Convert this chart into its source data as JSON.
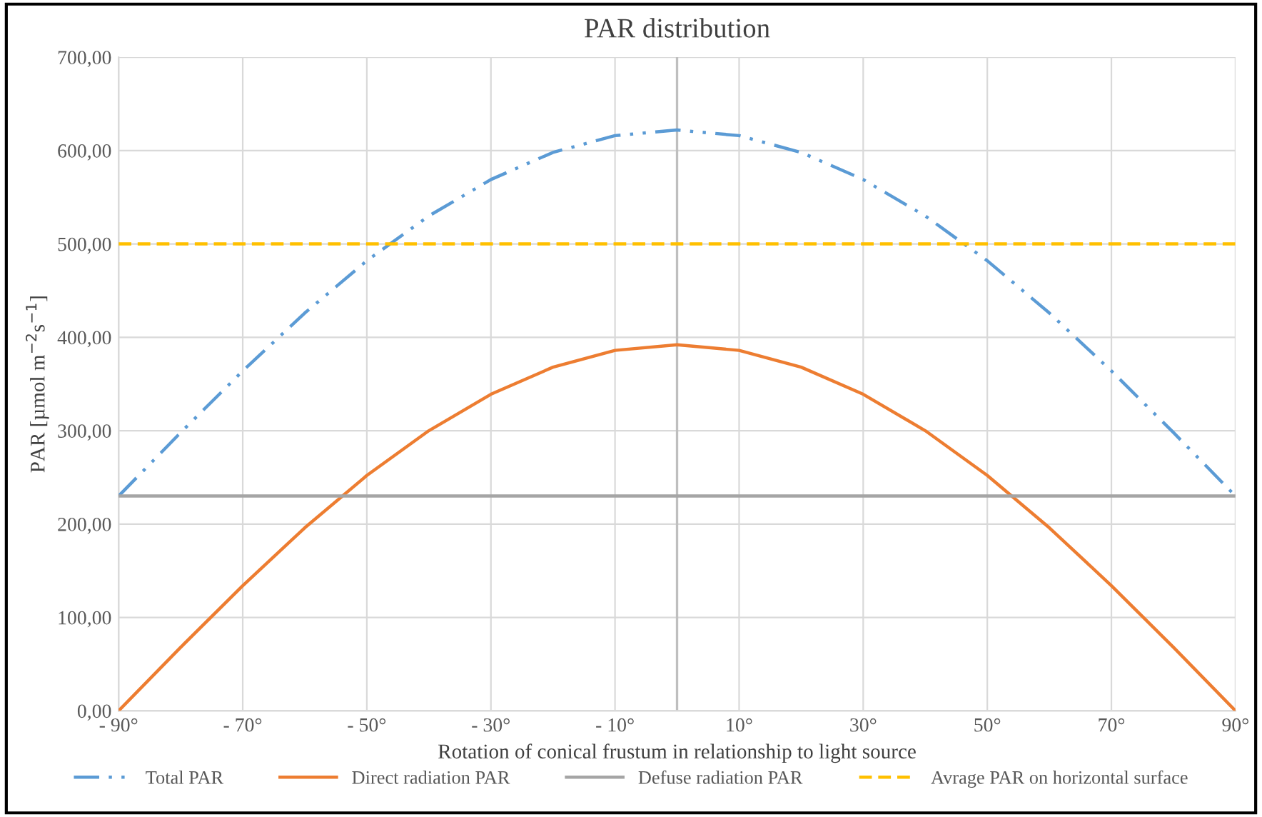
{
  "chart_data": {
    "type": "line",
    "title": "PAR distribution",
    "xlabel": "Rotation of conical frustum in relationship to light source",
    "ylabel": "PAR [µmol m$^{−2}$s$^{−1}$]",
    "x": [
      -90,
      -80,
      -70,
      -60,
      -50,
      -40,
      -30,
      -20,
      -10,
      0,
      10,
      20,
      30,
      40,
      50,
      60,
      70,
      80,
      90
    ],
    "series": [
      {
        "name": "Total PAR",
        "color": "#5b9bd5",
        "line_style": "dashdotdot",
        "values": [
          230,
          298,
          364,
          426,
          482,
          530,
          569,
          598,
          616,
          622,
          616,
          598,
          569,
          530,
          482,
          426,
          364,
          298,
          230
        ]
      },
      {
        "name": "Direct radiation PAR",
        "color": "#ed7d31",
        "line_style": "solid",
        "values": [
          0,
          68,
          134,
          196,
          252,
          300,
          339,
          368,
          386,
          392,
          386,
          368,
          339,
          300,
          252,
          196,
          134,
          68,
          0
        ]
      },
      {
        "name": "Defuse radiation PAR",
        "color": "#a5a5a5",
        "line_style": "solid",
        "values": [
          230,
          230,
          230,
          230,
          230,
          230,
          230,
          230,
          230,
          230,
          230,
          230,
          230,
          230,
          230,
          230,
          230,
          230,
          230
        ]
      },
      {
        "name": "Avrage PAR on horizontal surface",
        "color": "#ffc000",
        "line_style": "dashed",
        "values": [
          500,
          500,
          500,
          500,
          500,
          500,
          500,
          500,
          500,
          500,
          500,
          500,
          500,
          500,
          500,
          500,
          500,
          500,
          500
        ]
      }
    ],
    "xlim": [
      -90,
      90
    ],
    "xticks": [
      {
        "value": -90,
        "label": "- 90°"
      },
      {
        "value": -70,
        "label": "- 70°"
      },
      {
        "value": -50,
        "label": "- 50°"
      },
      {
        "value": -30,
        "label": "- 30°"
      },
      {
        "value": -10,
        "label": "- 10°"
      },
      {
        "value": 10,
        "label": "10°"
      },
      {
        "value": 30,
        "label": "30°"
      },
      {
        "value": 50,
        "label": "50°"
      },
      {
        "value": 70,
        "label": "70°"
      },
      {
        "value": 90,
        "label": "90°"
      }
    ],
    "ylim": [
      0,
      700
    ],
    "yticks": [
      {
        "value": 0,
        "label": "0,00"
      },
      {
        "value": 100,
        "label": "100,00"
      },
      {
        "value": 200,
        "label": "200,00"
      },
      {
        "value": 300,
        "label": "300,00"
      },
      {
        "value": 400,
        "label": "400,00"
      },
      {
        "value": 500,
        "label": "500,00"
      },
      {
        "value": 600,
        "label": "600,00"
      },
      {
        "value": 700,
        "label": "700,00"
      }
    ],
    "ref_lines": [
      {
        "axis": "x",
        "value": 0,
        "color": "#bfbfbf"
      }
    ],
    "grid": true,
    "legend": "bottom"
  }
}
